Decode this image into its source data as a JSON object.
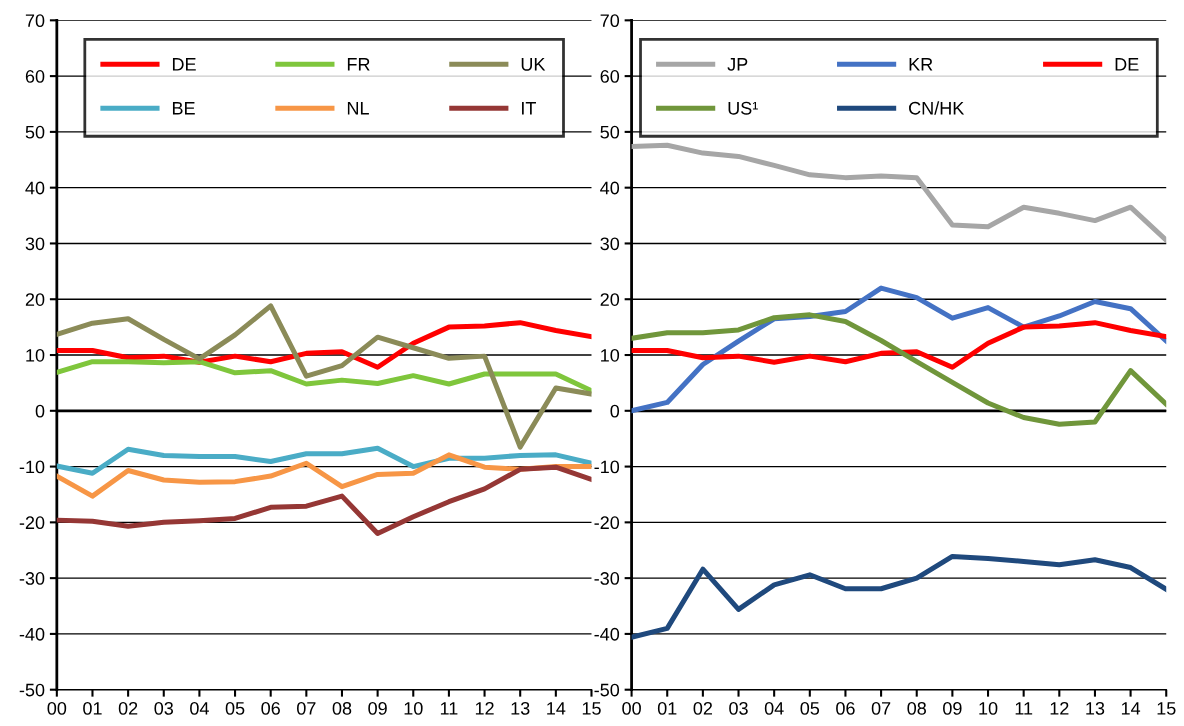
{
  "chart_data": [
    {
      "type": "line",
      "categories": [
        "00",
        "01",
        "02",
        "03",
        "04",
        "05",
        "06",
        "07",
        "08",
        "09",
        "10",
        "11",
        "12",
        "13",
        "14",
        "15"
      ],
      "ylim": [
        -50,
        70
      ],
      "yticks": [
        -50,
        -40,
        -30,
        -20,
        -10,
        0,
        10,
        20,
        30,
        40,
        50,
        60,
        70
      ],
      "grid": "y",
      "legend": "top",
      "marker": "none",
      "line_style": "solid",
      "series": [
        {
          "name": "DE",
          "color": "#ff0000",
          "values": [
            10.8,
            10.8,
            9.5,
            9.8,
            8.7,
            9.8,
            8.8,
            10.3,
            10.6,
            7.8,
            12.1,
            15,
            15.2,
            15.8,
            14.4,
            13.3
          ]
        },
        {
          "name": "FR",
          "color": "#7fc63c",
          "values": [
            6.9,
            8.8,
            8.8,
            8.6,
            8.8,
            6.8,
            7.2,
            4.8,
            5.5,
            4.9,
            6.3,
            4.8,
            6.6,
            6.6,
            6.6,
            3.6
          ]
        },
        {
          "name": "UK",
          "color": "#8b8b58",
          "values": [
            13.7,
            15.7,
            16.5,
            12.8,
            9.3,
            13.6,
            18.8,
            6.2,
            8.1,
            13.2,
            11.3,
            9.4,
            9.8,
            -6.5,
            4.1,
            3.0
          ]
        },
        {
          "name": "BE",
          "color": "#4aacc6",
          "values": [
            -9.9,
            -11.2,
            -6.9,
            -8,
            -8.2,
            -8.2,
            -9.1,
            -7.7,
            -7.7,
            -6.7,
            -10,
            -8.5,
            -8.5,
            -8,
            -7.9,
            -9.4
          ]
        },
        {
          "name": "NL",
          "color": "#f79646",
          "values": [
            -11.7,
            -15.3,
            -10.7,
            -12.4,
            -12.8,
            -12.7,
            -11.7,
            -9.4,
            -13.6,
            -11.4,
            -11.2,
            -7.9,
            -10.1,
            -10.5,
            -10,
            -10
          ]
        },
        {
          "name": "IT",
          "color": "#953735",
          "values": [
            -19.6,
            -19.8,
            -20.7,
            -20,
            -19.7,
            -19.3,
            -17.3,
            -17.1,
            -15.3,
            -22,
            -19,
            -16.3,
            -14,
            -10.5,
            -10.1,
            -12.3
          ]
        }
      ]
    },
    {
      "type": "line",
      "categories": [
        "00",
        "01",
        "02",
        "03",
        "04",
        "05",
        "06",
        "07",
        "08",
        "09",
        "10",
        "11",
        "12",
        "13",
        "14",
        "15"
      ],
      "ylim": [
        -50,
        70
      ],
      "yticks": [
        -50,
        -40,
        -30,
        -20,
        -10,
        0,
        10,
        20,
        30,
        40,
        50,
        60,
        70
      ],
      "grid": "y",
      "legend": "top",
      "marker": "none",
      "line_style": "solid",
      "series": [
        {
          "name": "JP",
          "color": "#a6a6a6",
          "values": [
            47.4,
            47.6,
            46.2,
            45.6,
            44,
            42.3,
            41.8,
            42.1,
            41.8,
            33.3,
            33,
            36.5,
            35.4,
            34.1,
            36.5,
            30.6
          ]
        },
        {
          "name": "KR",
          "color": "#4472c4",
          "values": [
            0,
            1.5,
            8.3,
            12.5,
            16.5,
            16.9,
            17.8,
            22,
            20.3,
            16.6,
            18.5,
            15,
            17,
            19.6,
            18.3,
            12.5
          ]
        },
        {
          "name": "DE",
          "color": "#ff0000",
          "values": [
            10.8,
            10.8,
            9.5,
            9.8,
            8.7,
            9.8,
            8.8,
            10.3,
            10.6,
            7.8,
            12.1,
            15,
            15.2,
            15.8,
            14.4,
            13.3
          ]
        },
        {
          "name": "US¹",
          "color": "#70963b",
          "values": [
            13,
            14,
            14,
            14.5,
            16.7,
            17.2,
            16,
            12.6,
            8.8,
            5.1,
            1.4,
            -1.2,
            -2.4,
            -2,
            7.2,
            1.2
          ]
        },
        {
          "name": "CN/HK",
          "color": "#1f497d",
          "values": [
            -40.6,
            -39,
            -28.4,
            -35.6,
            -31.2,
            -29.4,
            -31.9,
            -31.9,
            -30,
            -26.1,
            -26.5,
            -27,
            -27.6,
            -26.7,
            -28.1,
            -32
          ]
        }
      ]
    }
  ]
}
